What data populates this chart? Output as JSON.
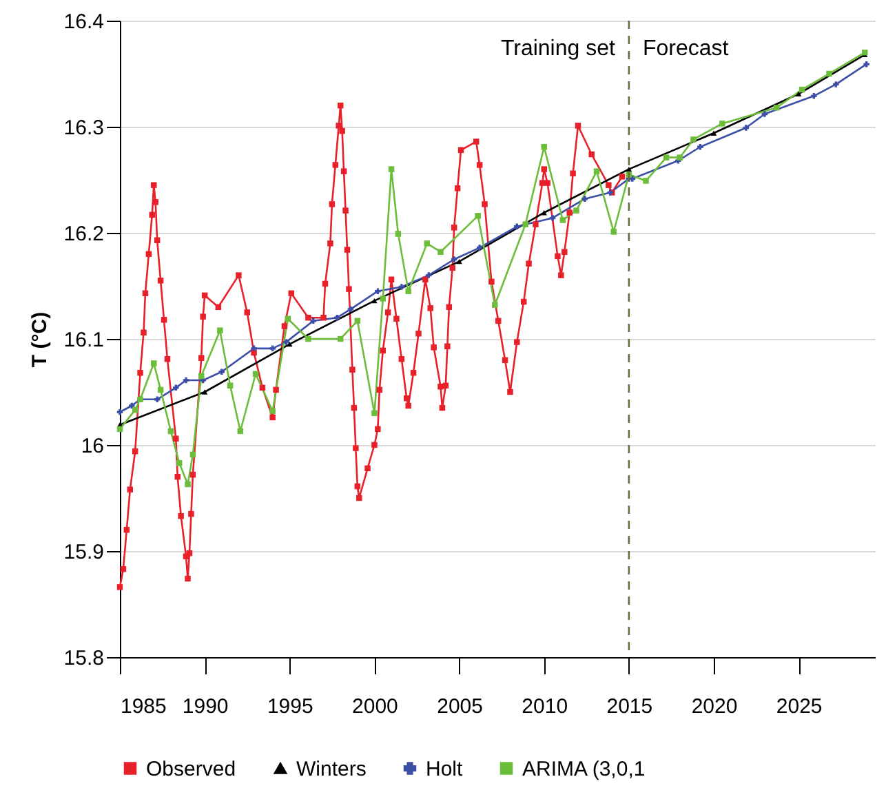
{
  "chart_data": {
    "type": "line",
    "ylabel": "T (°C)",
    "xlim": [
      1985,
      2029.5
    ],
    "xticks": [
      1985,
      1990,
      1995,
      2000,
      2005,
      2010,
      2015,
      2020,
      2025
    ],
    "ylim": [
      15.8,
      16.4
    ],
    "yticks": [
      15.8,
      15.9,
      16,
      16.1,
      16.2,
      16.3,
      16.4
    ],
    "grid": "y",
    "legend": "bottom",
    "ref_lines": [
      {
        "axis": "x",
        "value": 2015,
        "color": "#6b6b3a",
        "line_style": "dashed"
      }
    ],
    "annotations": [
      "Training set",
      "Forecast"
    ],
    "series": [
      {
        "name": "Observed",
        "color": "#e8202a",
        "marker": "square",
        "x": [
          1985.0,
          1985.2,
          1985.4,
          1985.6,
          1985.9,
          1986.2,
          1986.4,
          1986.5,
          1986.7,
          1986.9,
          1987.0,
          1987.1,
          1987.2,
          1987.4,
          1987.6,
          1987.8,
          1988.3,
          1988.4,
          1988.6,
          1988.9,
          1989.0,
          1989.1,
          1989.2,
          1989.3,
          1989.8,
          1989.9,
          1990.0,
          1990.8,
          1992.0,
          1992.5,
          1992.9,
          1993.4,
          1994.0,
          1994.2,
          1994.7,
          1995.1,
          1996.1,
          1997.0,
          1997.1,
          1997.4,
          1997.5,
          1997.7,
          1997.9,
          1998.0,
          1998.1,
          1998.2,
          1998.3,
          1998.4,
          1998.5,
          1998.7,
          1998.8,
          1998.9,
          1999.0,
          1999.1,
          1999.6,
          2000.0,
          2000.2,
          2000.3,
          2000.5,
          2000.8,
          2001.0,
          2001.3,
          2001.6,
          2001.9,
          2002.0,
          2002.3,
          2002.6,
          2003.0,
          2003.3,
          2003.5,
          2003.9,
          2004.0,
          2004.2,
          2004.3,
          2004.4,
          2004.6,
          2004.7,
          2004.9,
          2005.1,
          2006.0,
          2006.2,
          2006.5,
          2006.9,
          2007.3,
          2007.7,
          2008.0,
          2008.4,
          2008.8,
          2009.1,
          2009.5,
          2009.9,
          2010.0,
          2010.2,
          2010.8,
          2011.0,
          2011.2,
          2011.5,
          2011.7,
          2012.0,
          2012.8,
          2013.8,
          2014.0,
          2014.6
        ],
        "values": [
          15.866,
          15.883,
          15.92,
          15.958,
          15.994,
          16.068,
          16.106,
          16.143,
          16.18,
          16.217,
          16.245,
          16.229,
          16.193,
          16.155,
          16.118,
          16.081,
          16.006,
          15.97,
          15.933,
          15.895,
          15.874,
          15.898,
          15.935,
          15.972,
          16.082,
          16.121,
          16.141,
          16.13,
          16.16,
          16.125,
          16.087,
          16.054,
          16.026,
          16.052,
          16.112,
          16.143,
          16.12,
          16.12,
          16.152,
          16.19,
          16.227,
          16.264,
          16.301,
          16.32,
          16.296,
          16.258,
          16.221,
          16.184,
          16.147,
          16.071,
          16.035,
          15.997,
          15.961,
          15.95,
          15.978,
          16.0,
          16.015,
          16.052,
          16.089,
          16.125,
          16.156,
          16.119,
          16.081,
          16.044,
          16.037,
          16.068,
          16.105,
          16.156,
          16.129,
          16.092,
          16.055,
          16.035,
          16.056,
          16.093,
          16.13,
          16.167,
          16.205,
          16.242,
          16.278,
          16.286,
          16.264,
          16.227,
          16.154,
          16.117,
          16.08,
          16.05,
          16.097,
          16.135,
          16.171,
          16.208,
          16.247,
          16.26,
          16.247,
          16.178,
          16.16,
          16.182,
          16.219,
          16.256,
          16.301,
          16.274,
          16.245,
          16.238,
          16.253
        ]
      },
      {
        "name": "Winters",
        "color": "#000000",
        "marker": "triangle",
        "x": [
          1985,
          1990,
          1995,
          2000,
          2005,
          2010,
          2015,
          2020,
          2025,
          2028.9
        ],
        "values": [
          16.019,
          16.05,
          16.095,
          16.136,
          16.173,
          16.219,
          16.26,
          16.294,
          16.331,
          16.368
        ]
      },
      {
        "name": "Holt",
        "color": "#3d4ea6",
        "marker": "cross",
        "x": [
          1985.0,
          1985.7,
          1986.2,
          1987.2,
          1988.3,
          1988.9,
          1989.9,
          1991.0,
          1992.9,
          1994.0,
          1994.8,
          1996.4,
          1997.8,
          1998.6,
          2000.2,
          2001.6,
          2003.2,
          2004.7,
          2006.2,
          2008.4,
          2010.5,
          2012.4,
          2013.9,
          2015.0,
          2015.2,
          2017.9,
          2019.2,
          2021.9,
          2023.0,
          2025.9,
          2027.2,
          2029.0
        ],
        "values": [
          16.031,
          16.037,
          16.043,
          16.043,
          16.054,
          16.061,
          16.061,
          16.069,
          16.091,
          16.091,
          16.097,
          16.117,
          16.12,
          16.128,
          16.145,
          16.149,
          16.16,
          16.175,
          16.186,
          16.206,
          16.214,
          16.232,
          16.238,
          16.251,
          16.251,
          16.268,
          16.281,
          16.299,
          16.312,
          16.329,
          16.34,
          16.359
        ]
      },
      {
        "name": "ARIMA (3,0,1",
        "color": "#6cbd3a",
        "marker": "square",
        "x": [
          1985.0,
          1985.9,
          1986.2,
          1987.0,
          1987.4,
          1988.0,
          1988.5,
          1989.0,
          1989.3,
          1989.8,
          1990.9,
          1991.5,
          1992.1,
          1993.0,
          1994.0,
          1994.9,
          1996.1,
          1998.0,
          1999.0,
          2000.0,
          2000.5,
          2001.0,
          2001.4,
          2002.0,
          2003.1,
          2003.9,
          2006.1,
          2007.1,
          2008.9,
          2010.0,
          2011.1,
          2011.9,
          2013.1,
          2014.1,
          2015.0,
          2016.0,
          2017.2,
          2018.0,
          2018.8,
          2020.5,
          2023.7,
          2025.2,
          2026.8,
          2028.9
        ],
        "values": [
          16.015,
          16.033,
          16.043,
          16.077,
          16.052,
          16.013,
          15.983,
          15.963,
          15.991,
          16.065,
          16.108,
          16.056,
          16.013,
          16.067,
          16.032,
          16.119,
          16.1,
          16.1,
          16.117,
          16.03,
          16.138,
          16.26,
          16.199,
          16.145,
          16.19,
          16.182,
          16.216,
          16.132,
          16.208,
          16.281,
          16.212,
          16.221,
          16.258,
          16.201,
          16.255,
          16.249,
          16.271,
          16.271,
          16.288,
          16.303,
          16.318,
          16.335,
          16.35,
          16.37
        ]
      }
    ]
  }
}
